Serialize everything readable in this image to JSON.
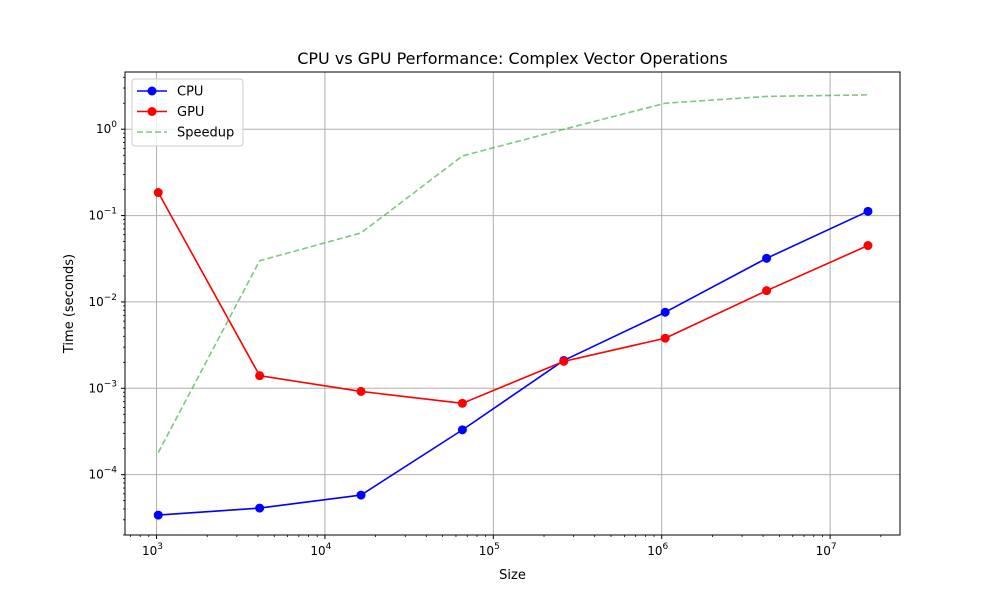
{
  "chart_data": {
    "type": "line",
    "title": "CPU vs GPU Performance: Complex Vector Operations",
    "xlabel": "Size",
    "ylabel": "Time (seconds)",
    "xscale": "log",
    "yscale": "log",
    "xlim": [
      650,
      26000000
    ],
    "ylim": [
      2e-05,
      4.6
    ],
    "grid": true,
    "legend_location": "upper-left",
    "x": [
      1024,
      4096,
      16384,
      65536,
      262144,
      1048576,
      4194304,
      16777216
    ],
    "x_ticks": [
      {
        "value": 1000,
        "base": "10",
        "exp": "3"
      },
      {
        "value": 10000,
        "base": "10",
        "exp": "4"
      },
      {
        "value": 100000,
        "base": "10",
        "exp": "5"
      },
      {
        "value": 1000000,
        "base": "10",
        "exp": "6"
      },
      {
        "value": 10000000,
        "base": "10",
        "exp": "7"
      }
    ],
    "y_ticks": [
      {
        "value": 0.0001,
        "base": "10",
        "exp": "−4"
      },
      {
        "value": 0.001,
        "base": "10",
        "exp": "−3"
      },
      {
        "value": 0.01,
        "base": "10",
        "exp": "−2"
      },
      {
        "value": 0.1,
        "base": "10",
        "exp": "−1"
      },
      {
        "value": 1,
        "base": "10",
        "exp": "0"
      }
    ],
    "series": [
      {
        "name": "CPU",
        "color": "#0000ff",
        "style": "solid",
        "marker": "circle",
        "values": [
          3.4e-05,
          4.1e-05,
          5.8e-05,
          0.00033,
          0.0021,
          0.0076,
          0.032,
          0.112
        ]
      },
      {
        "name": "GPU",
        "color": "#ff0000",
        "style": "solid",
        "marker": "circle",
        "values": [
          0.185,
          0.0014,
          0.00092,
          0.00067,
          0.00205,
          0.0038,
          0.0135,
          0.045
        ]
      },
      {
        "name": "Speedup",
        "color": "#2ca02c",
        "style": "dashed",
        "marker": "none",
        "opacity": 0.6,
        "values": [
          0.00018,
          0.03,
          0.063,
          0.49,
          1.0,
          2.0,
          2.4,
          2.5
        ]
      }
    ]
  }
}
